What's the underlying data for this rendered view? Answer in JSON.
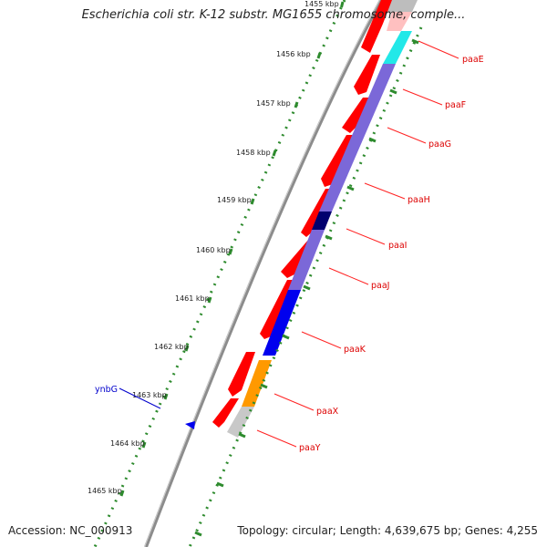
{
  "title": "Escherichia coli str. K-12 substr. MG1655 chromosome, comple...",
  "footer": {
    "accession": "Accession: NC_000913",
    "summary": "Topology: circular; Length: 4,639,675 bp; Genes: 4,255"
  },
  "colors": {
    "backbone": "#8a8a8a",
    "tick_green": "#2e8b2e",
    "forward_gene": "#ff0000",
    "label_reverse": "#dd0000",
    "label_forward": "#0000cc",
    "paaE_cog": "#22e8e8",
    "paaF_to_paaJ_cog": "#7b68d8",
    "paaI_cog": "#00006e",
    "paaK_cog": "#0000ee",
    "paaX_cog": "#ff9900",
    "paaY_cog": "#c8c8c8"
  },
  "kbp_ticks": [
    "1455 kbp",
    "1456 kbp",
    "1457 kbp",
    "1458 kbp",
    "1459 kbp",
    "1460 kbp",
    "1461 kbp",
    "1462 kbp",
    "1463 kbp",
    "1464 kbp",
    "1465 kbp"
  ],
  "gene_labels": [
    {
      "name": "paaE",
      "strand": "reverse"
    },
    {
      "name": "paaF",
      "strand": "reverse"
    },
    {
      "name": "paaG",
      "strand": "reverse"
    },
    {
      "name": "paaH",
      "strand": "reverse"
    },
    {
      "name": "paaI",
      "strand": "reverse"
    },
    {
      "name": "paaJ",
      "strand": "reverse"
    },
    {
      "name": "paaK",
      "strand": "reverse"
    },
    {
      "name": "paaX",
      "strand": "reverse"
    },
    {
      "name": "paaY",
      "strand": "reverse"
    },
    {
      "name": "ynbG",
      "strand": "forward"
    }
  ]
}
